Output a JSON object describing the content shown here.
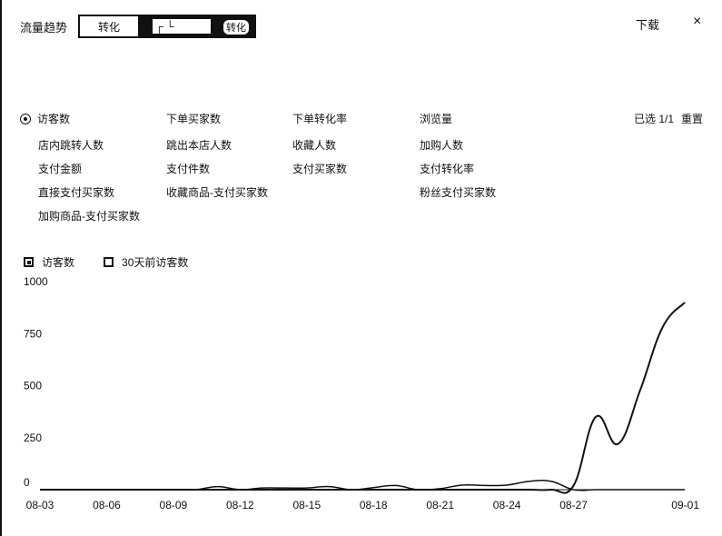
{
  "header": {
    "title": "流量趋势",
    "tab_a_label": "转化",
    "tab_b_label": "转化"
  },
  "toolbar": {
    "download_label": "下载",
    "close_label": "×"
  },
  "metrics": {
    "row1": [
      "访客数",
      "下单买家数",
      "下单转化率",
      "浏览量"
    ],
    "row2": [
      "店内跳转人数",
      "跳出本店人数",
      "收藏人数",
      "加购人数"
    ],
    "row3": [
      "支付金额",
      "支付件数",
      "支付买家数",
      "支付转化率"
    ],
    "row4": [
      "直接支付买家数",
      "收藏商品-支付买家数",
      "粉丝支付买家数"
    ],
    "row5": [
      "加购商品-支付买家数"
    ],
    "selected_count": "已选 1/1",
    "reset_label": "重置"
  },
  "legend": {
    "series1": "访客数",
    "series2": "30天前访客数"
  },
  "chart_data": {
    "type": "line",
    "ylim": [
      0,
      1000
    ],
    "yticks": [
      "0",
      "250",
      "500",
      "750",
      "1000"
    ],
    "xtick_labels": [
      "08-03",
      "08-06",
      "08-09",
      "08-12",
      "08-15",
      "08-18",
      "08-21",
      "08-24",
      "08-27",
      "09-01"
    ],
    "x": [
      "08-03",
      "08-04",
      "08-05",
      "08-06",
      "08-07",
      "08-08",
      "08-09",
      "08-10",
      "08-11",
      "08-12",
      "08-13",
      "08-14",
      "08-15",
      "08-16",
      "08-17",
      "08-18",
      "08-19",
      "08-20",
      "08-21",
      "08-22",
      "08-23",
      "08-24",
      "08-25",
      "08-26",
      "08-27",
      "08-28",
      "08-29",
      "08-30",
      "08-31",
      "09-01"
    ],
    "series": [
      {
        "name": "访客数",
        "values": [
          0,
          0,
          0,
          0,
          0,
          0,
          0,
          0,
          0,
          0,
          0,
          0,
          0,
          0,
          0,
          0,
          0,
          0,
          0,
          0,
          0,
          0,
          0,
          0,
          20,
          350,
          220,
          480,
          780,
          900
        ]
      },
      {
        "name": "30天前访客数",
        "values": [
          0,
          0,
          0,
          0,
          0,
          0,
          0,
          0,
          15,
          0,
          8,
          8,
          8,
          15,
          0,
          10,
          20,
          0,
          5,
          22,
          20,
          22,
          40,
          40,
          0,
          0,
          0,
          0,
          0,
          0
        ]
      }
    ]
  }
}
